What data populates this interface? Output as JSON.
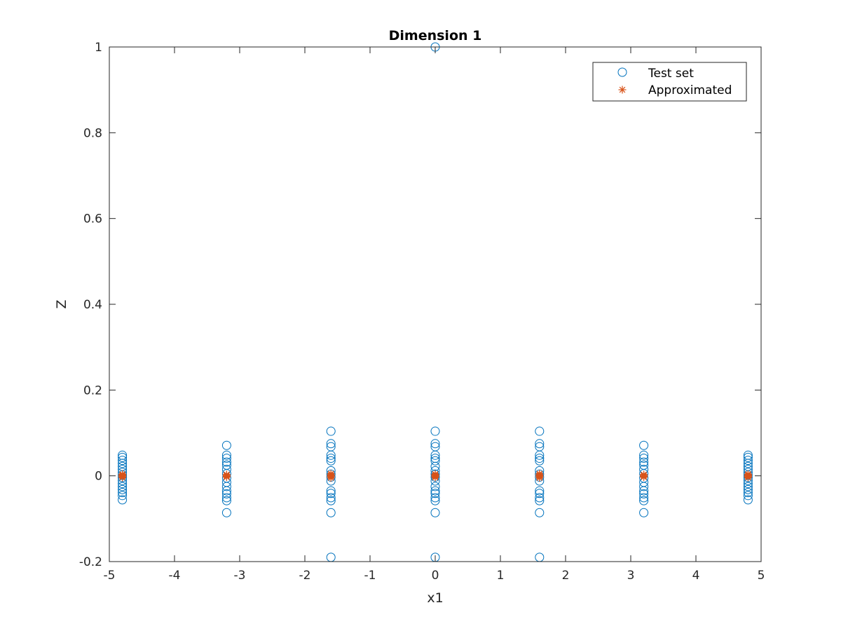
{
  "chart_data": {
    "type": "scatter",
    "title": "Dimension 1",
    "xlabel": "x1",
    "ylabel": "Z",
    "xlim": [
      -5,
      5
    ],
    "ylim": [
      -0.2,
      1
    ],
    "xticks": [
      -5,
      -4,
      -3,
      -2,
      -1,
      0,
      1,
      2,
      3,
      4,
      5
    ],
    "yticks": [
      -0.2,
      0,
      0.2,
      0.4,
      0.6,
      0.8,
      1
    ],
    "ytick_labels": [
      "-0.2",
      "0",
      "0.2",
      "0.4",
      "0.6",
      "0.8",
      "1"
    ],
    "grid": false,
    "legend": {
      "position": "top-right"
    },
    "series": [
      {
        "name": "Test set",
        "marker": "circle",
        "color": "#0072BD",
        "points": [
          {
            "x": -4.8,
            "y": [
              0.048,
              0.043,
              0.036,
              0.029,
              0.022,
              0.015,
              0.008,
              0.002,
              -0.004,
              -0.011,
              -0.018,
              -0.025,
              -0.032,
              -0.039,
              -0.046,
              -0.056
            ]
          },
          {
            "x": -3.2,
            "y": [
              0.071,
              0.048,
              0.041,
              0.032,
              0.025,
              0.015,
              0.005,
              -0.005,
              -0.015,
              -0.025,
              -0.035,
              -0.042,
              -0.051,
              -0.058,
              -0.086
            ]
          },
          {
            "x": -1.6,
            "y": [
              0.104,
              0.075,
              0.068,
              0.048,
              0.041,
              0.035,
              0.012,
              0.004,
              -0.003,
              -0.012,
              -0.035,
              -0.041,
              -0.051,
              -0.058,
              -0.086,
              -0.19
            ]
          },
          {
            "x": 0,
            "y": [
              1.0,
              0.104,
              0.075,
              0.068,
              0.048,
              0.041,
              0.035,
              0.022,
              0.012,
              0.004,
              -0.003,
              -0.012,
              -0.025,
              -0.035,
              -0.041,
              -0.051,
              -0.058,
              -0.086,
              -0.19
            ]
          },
          {
            "x": 1.6,
            "y": [
              0.104,
              0.075,
              0.068,
              0.048,
              0.041,
              0.035,
              0.012,
              0.004,
              -0.003,
              -0.012,
              -0.035,
              -0.041,
              -0.051,
              -0.058,
              -0.086,
              -0.19
            ]
          },
          {
            "x": 3.2,
            "y": [
              0.071,
              0.048,
              0.041,
              0.032,
              0.025,
              0.015,
              0.005,
              -0.005,
              -0.015,
              -0.025,
              -0.035,
              -0.042,
              -0.051,
              -0.058,
              -0.086
            ]
          },
          {
            "x": 4.8,
            "y": [
              0.048,
              0.043,
              0.036,
              0.029,
              0.022,
              0.015,
              0.008,
              0.002,
              -0.004,
              -0.011,
              -0.018,
              -0.025,
              -0.032,
              -0.039,
              -0.046,
              -0.056
            ]
          }
        ]
      },
      {
        "name": "Approximated",
        "marker": "asterisk",
        "color": "#D95319",
        "points": [
          {
            "x": -4.8,
            "y": [
              0.004,
              0.002,
              0.0,
              -0.002,
              -0.004
            ]
          },
          {
            "x": -3.2,
            "y": [
              0.003,
              0.001,
              -0.001,
              -0.003
            ]
          },
          {
            "x": -1.6,
            "y": [
              0.005,
              0.002,
              0.0,
              -0.002,
              -0.005
            ]
          },
          {
            "x": 0,
            "y": [
              0.004,
              0.002,
              0.0,
              -0.002,
              -0.004
            ]
          },
          {
            "x": 1.6,
            "y": [
              0.005,
              0.002,
              0.0,
              -0.002,
              -0.005
            ]
          },
          {
            "x": 3.2,
            "y": [
              0.003,
              0.001,
              -0.001,
              -0.003
            ]
          },
          {
            "x": 4.8,
            "y": [
              0.004,
              0.002,
              0.0,
              -0.002,
              -0.004
            ]
          }
        ]
      }
    ]
  }
}
